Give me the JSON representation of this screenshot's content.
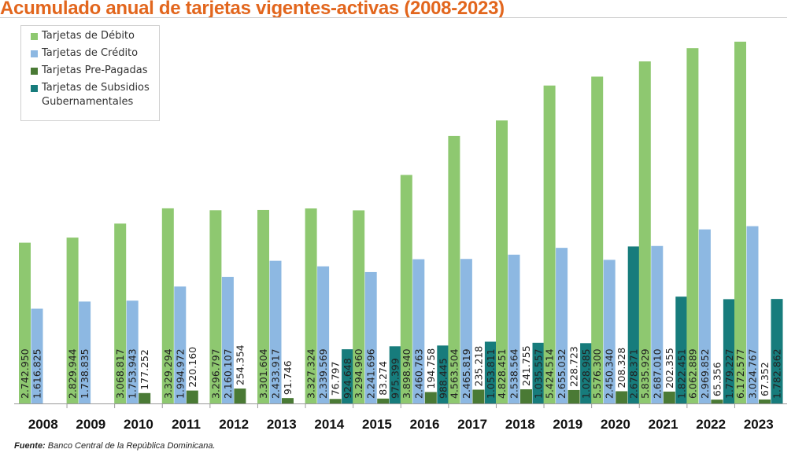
{
  "title": "Acumulado anual de tarjetas vigentes-activas (2008-2023)",
  "source": {
    "label": "Fuente:",
    "text": "Banco Central de la República Dominicana."
  },
  "chart_data": {
    "type": "bar",
    "title": "Acumulado anual de tarjetas vigentes-activas (2008-2023)",
    "categories": [
      "2008",
      "2009",
      "2010",
      "2011",
      "2012",
      "2013",
      "2014",
      "2015",
      "2016",
      "2017",
      "2018",
      "2019",
      "2020",
      "2021",
      "2022",
      "2023"
    ],
    "series": [
      {
        "name": "Tarjetas de Débito",
        "color": "#8ec870",
        "values": [
          2742950,
          2829944,
          3068817,
          3329294,
          3296797,
          3301604,
          3327324,
          3294960,
          3898940,
          4563504,
          4828451,
          5424514,
          5576300,
          5835929,
          6062889,
          6172577
        ],
        "labels": [
          "2.742.950",
          "2.829.944",
          "3.068.817",
          "3.329.294",
          "3.296.797",
          "3.301.604",
          "3.327.324",
          "3.294.960",
          "3.898.940",
          "4.563.504",
          "4.828.451",
          "5.424.514",
          "5.576.300",
          "5.835.929",
          "6.062.889",
          "6.172.577"
        ]
      },
      {
        "name": "Tarjetas de Crédito",
        "color": "#8db8e2",
        "values": [
          1616825,
          1738835,
          1753943,
          1994972,
          2160107,
          2433917,
          2339569,
          2241696,
          2460763,
          2465819,
          2538564,
          2655032,
          2450340,
          2687010,
          2969852,
          3024767
        ],
        "labels": [
          "1.616.825",
          "1.738.835",
          "1.753.943",
          "1.994.972",
          "2.160.107",
          "2.433.917",
          "2.339.569",
          "2.241.696",
          "2.460.763",
          "2.465.819",
          "2.538.564",
          "2.655.032",
          "2.450.340",
          "2.687.010",
          "2.969.852",
          "3.024.767"
        ]
      },
      {
        "name": "Tarjetas Pre-Pagadas",
        "color": "#4a7a35",
        "values": [
          null,
          null,
          177252,
          220160,
          254354,
          91746,
          76797,
          83274,
          194758,
          235218,
          241755,
          228723,
          208328,
          202355,
          65356,
          67352
        ],
        "labels": [
          "",
          "",
          "177.252",
          "220.160",
          "254.354",
          "91.746",
          "76.797",
          "83.274",
          "194.758",
          "235.218",
          "241.755",
          "228.723",
          "208.328",
          "202.355",
          "65.356",
          "67.352"
        ]
      },
      {
        "name": "Tarjetas de Subsidios Gubernamentales",
        "color": "#177c7c",
        "values": [
          null,
          null,
          null,
          null,
          null,
          null,
          924648,
          975399,
          988445,
          1053811,
          1035557,
          1028985,
          2678371,
          1822451,
          1779227,
          1782862
        ],
        "labels": [
          "",
          "",
          "",
          "",
          "",
          "",
          "924.648",
          "975.399",
          "988.445",
          "1.053.811",
          "1.035.557",
          "1.028.985",
          "2.678.371",
          "1.822.451",
          "1.779.227",
          "1.782.862"
        ]
      }
    ],
    "legend_position": "top-left",
    "grid": false
  },
  "legend": {
    "items": [
      {
        "label": "Tarjetas de Débito",
        "color": "#8ec870"
      },
      {
        "label": "Tarjetas de Crédito",
        "color": "#8db8e2"
      },
      {
        "label": "Tarjetas Pre-Pagadas",
        "color": "#4a7a35"
      },
      {
        "label": "Tarjetas de Subsidios Gubernamentales",
        "color": "#177c7c"
      }
    ]
  }
}
